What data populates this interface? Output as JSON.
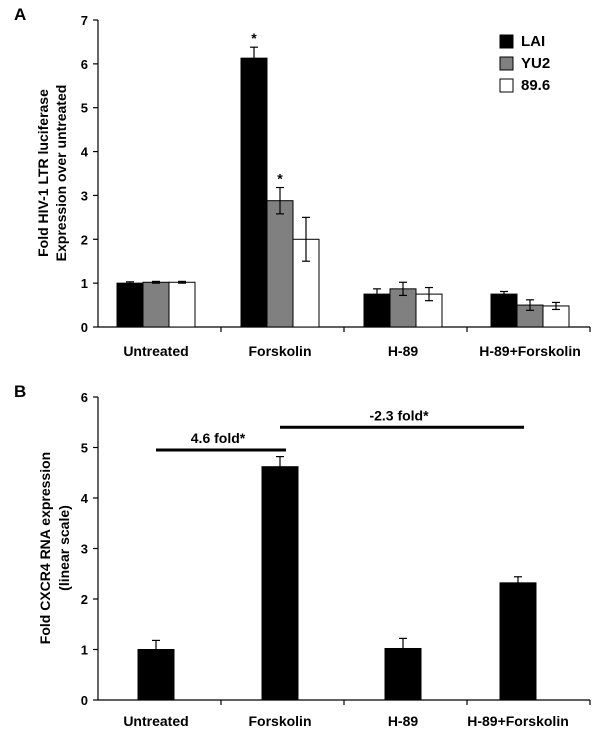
{
  "chart_data": [
    {
      "type": "bar",
      "panel_label": "A",
      "ylabel_lines": [
        "Fold HIV-1 LTR luciferase",
        "Expression over untreated"
      ],
      "categories": [
        "Untreated",
        "Forskolin",
        "H-89",
        "H-89+Forskolin"
      ],
      "ylim": [
        0,
        7
      ],
      "yticks": [
        "0",
        "1",
        "2",
        "3",
        "4",
        "5",
        "6",
        "7"
      ],
      "legend_position": "top-right",
      "series": [
        {
          "name": "LAI",
          "color": "#000000",
          "values": [
            1.0,
            6.13,
            0.75,
            0.75
          ],
          "errors": [
            0.03,
            0.25,
            0.12,
            0.06
          ],
          "labels": [
            "",
            "*",
            "",
            ""
          ]
        },
        {
          "name": "YU2",
          "color": "#808080",
          "values": [
            1.02,
            2.88,
            0.87,
            0.5
          ],
          "errors": [
            0.02,
            0.3,
            0.15,
            0.12
          ],
          "labels": [
            "",
            "*",
            "",
            ""
          ]
        },
        {
          "name": "89.6",
          "color": "#ffffff",
          "values": [
            1.02,
            2.0,
            0.75,
            0.48
          ],
          "errors": [
            0.02,
            0.5,
            0.15,
            0.08
          ],
          "labels": [
            "",
            "",
            "",
            ""
          ]
        }
      ]
    },
    {
      "type": "bar",
      "panel_label": "B",
      "ylabel_lines": [
        "Fold CXCR4 RNA expression",
        "(linear scale)"
      ],
      "categories": [
        "Untreated",
        "Forskolin",
        "H-89",
        "H-89+Forskolin"
      ],
      "ylim": [
        0,
        6
      ],
      "yticks": [
        "0",
        "1",
        "2",
        "3",
        "4",
        "5",
        "6"
      ],
      "series": [
        {
          "color": "#000000",
          "values": [
            1.0,
            4.62,
            1.02,
            2.32
          ],
          "errors": [
            0.18,
            0.2,
            0.2,
            0.12
          ]
        }
      ],
      "annotations": [
        {
          "text": "4.6 fold*",
          "from": 0,
          "to": 1,
          "y": 4.95
        },
        {
          "text": "-2.3 fold*",
          "from": 1,
          "to": 3,
          "y": 5.4
        }
      ]
    }
  ]
}
